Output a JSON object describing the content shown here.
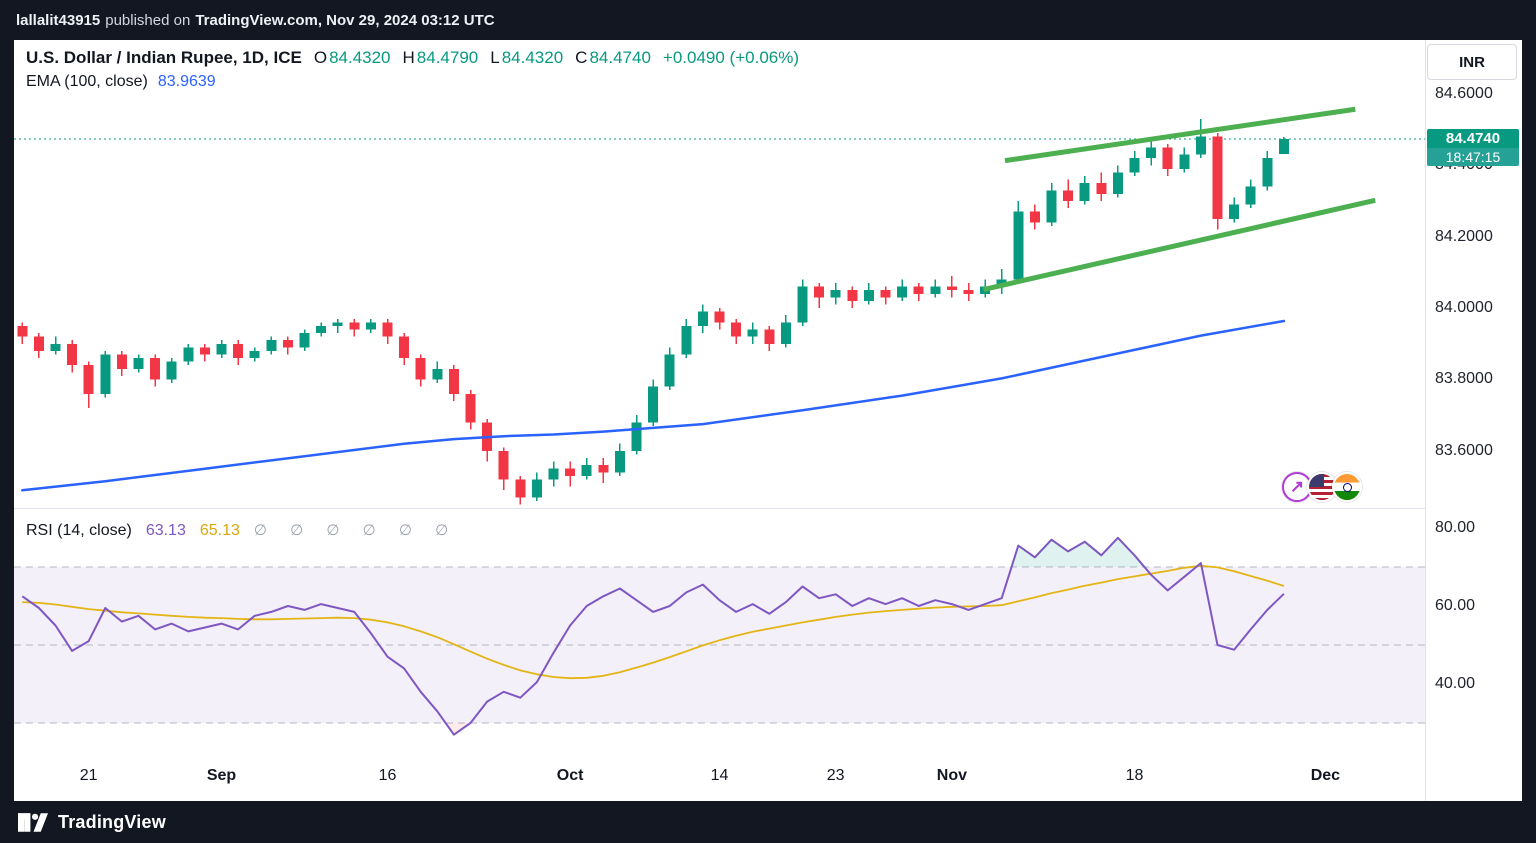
{
  "topbar": {
    "user": "lallalit43915",
    "mid": "published on",
    "rest": "TradingView.com, Nov 29, 2024 03:12 UTC"
  },
  "legend": {
    "symbol": "U.S. Dollar / Indian Rupee, 1D, ICE",
    "o_label": "O",
    "o": "84.4320",
    "h_label": "H",
    "h": "84.4790",
    "l_label": "L",
    "l": "84.4320",
    "c_label": "C",
    "c": "84.4740",
    "change": "+0.0490 (+0.06%)",
    "ema_label": "EMA (100, close)",
    "ema_value": "83.9639"
  },
  "rsi_legend": {
    "label": "RSI (14, close)",
    "value": "63.13",
    "ma_value": "65.13",
    "hidden": "∅ ∅ ∅ ∅ ∅ ∅"
  },
  "axis": {
    "currency": "INR",
    "price_label": "84.4740",
    "countdown": "18:47:15",
    "price_ticks": [
      {
        "v": 84.6,
        "label": "84.6000"
      },
      {
        "v": 84.4,
        "label": "84.4000"
      },
      {
        "v": 84.2,
        "label": "84.2000"
      },
      {
        "v": 84.0,
        "label": "84.0000"
      },
      {
        "v": 83.8,
        "label": "83.8000"
      },
      {
        "v": 83.6,
        "label": "83.6000"
      }
    ],
    "rsi_ticks": [
      {
        "v": 80,
        "label": "80.00"
      },
      {
        "v": 60,
        "label": "60.00"
      },
      {
        "v": 40,
        "label": "40.00"
      }
    ]
  },
  "time_axis": [
    {
      "i": 4,
      "label": "21",
      "bold": false
    },
    {
      "i": 12,
      "label": "Sep",
      "bold": true
    },
    {
      "i": 22,
      "label": "16",
      "bold": false
    },
    {
      "i": 33,
      "label": "Oct",
      "bold": true
    },
    {
      "i": 42,
      "label": "14",
      "bold": false
    },
    {
      "i": 49,
      "label": "23",
      "bold": false
    },
    {
      "i": 56,
      "label": "Nov",
      "bold": true
    },
    {
      "i": 67,
      "label": "18",
      "bold": false
    },
    {
      "i": 78.5,
      "label": "Dec",
      "bold": true
    }
  ],
  "colors": {
    "up": "#089981",
    "down": "#f23645",
    "ema": "#2962ff",
    "trend": "#4caf50",
    "rsi": "#7e57c2",
    "rsi_ma": "#e3b514",
    "band_fill": "rgba(126,87,194,0.09)",
    "band_dash": "#b5b8c1",
    "overbought_fill": "rgba(8,153,129,0.13)",
    "oversold_fill": "rgba(242,54,69,0.10)",
    "price_line": "#089981",
    "label_bg": "#089981",
    "page_bg": "#131722",
    "panel_bg": "#ffffff"
  },
  "chart_data": {
    "type": "candlestick",
    "title": "U.S. Dollar / Indian Rupee, 1D, ICE",
    "interval": "1D",
    "exchange": "ICE",
    "current_price": 84.474,
    "price_pane": {
      "ylim": [
        83.44,
        84.751
      ]
    },
    "rsi_pane": {
      "ylim": [
        21.03,
        85.13
      ],
      "upper_band": 70,
      "mid_band": 50,
      "lower_band": 30
    },
    "visible_slots": 85,
    "candles": [
      [
        83.95,
        83.96,
        83.9,
        83.92
      ],
      [
        83.92,
        83.93,
        83.86,
        83.88
      ],
      [
        83.88,
        83.92,
        83.87,
        83.9
      ],
      [
        83.9,
        83.91,
        83.82,
        83.84
      ],
      [
        83.84,
        83.85,
        83.72,
        83.76
      ],
      [
        83.76,
        83.88,
        83.75,
        83.87
      ],
      [
        83.87,
        83.88,
        83.81,
        83.83
      ],
      [
        83.83,
        83.87,
        83.82,
        83.86
      ],
      [
        83.86,
        83.87,
        83.78,
        83.8
      ],
      [
        83.8,
        83.86,
        83.79,
        83.85
      ],
      [
        83.85,
        83.9,
        83.84,
        83.89
      ],
      [
        83.89,
        83.9,
        83.85,
        83.87
      ],
      [
        83.87,
        83.91,
        83.86,
        83.9
      ],
      [
        83.9,
        83.91,
        83.84,
        83.86
      ],
      [
        83.86,
        83.89,
        83.85,
        83.88
      ],
      [
        83.88,
        83.92,
        83.87,
        83.91
      ],
      [
        83.91,
        83.92,
        83.87,
        83.89
      ],
      [
        83.89,
        83.94,
        83.88,
        83.93
      ],
      [
        83.93,
        83.96,
        83.92,
        83.95
      ],
      [
        83.95,
        83.97,
        83.93,
        83.96
      ],
      [
        83.96,
        83.97,
        83.92,
        83.94
      ],
      [
        83.94,
        83.97,
        83.93,
        83.96
      ],
      [
        83.96,
        83.97,
        83.9,
        83.92
      ],
      [
        83.92,
        83.93,
        83.84,
        83.86
      ],
      [
        83.86,
        83.87,
        83.78,
        83.8
      ],
      [
        83.8,
        83.85,
        83.79,
        83.83
      ],
      [
        83.83,
        83.84,
        83.74,
        83.76
      ],
      [
        83.76,
        83.77,
        83.66,
        83.68
      ],
      [
        83.68,
        83.69,
        83.57,
        83.6
      ],
      [
        83.6,
        83.61,
        83.49,
        83.52
      ],
      [
        83.52,
        83.53,
        83.45,
        83.47
      ],
      [
        83.47,
        83.54,
        83.46,
        83.52
      ],
      [
        83.52,
        83.57,
        83.5,
        83.55
      ],
      [
        83.55,
        83.57,
        83.5,
        83.53
      ],
      [
        83.53,
        83.58,
        83.52,
        83.56
      ],
      [
        83.56,
        83.58,
        83.51,
        83.54
      ],
      [
        83.54,
        83.62,
        83.53,
        83.6
      ],
      [
        83.6,
        83.7,
        83.59,
        83.68
      ],
      [
        83.68,
        83.8,
        83.67,
        83.78
      ],
      [
        83.78,
        83.89,
        83.77,
        83.87
      ],
      [
        83.87,
        83.97,
        83.86,
        83.95
      ],
      [
        83.95,
        84.01,
        83.93,
        83.99
      ],
      [
        83.99,
        84.0,
        83.94,
        83.96
      ],
      [
        83.96,
        83.97,
        83.9,
        83.92
      ],
      [
        83.92,
        83.96,
        83.9,
        83.94
      ],
      [
        83.94,
        83.95,
        83.88,
        83.9
      ],
      [
        83.9,
        83.98,
        83.89,
        83.96
      ],
      [
        83.96,
        84.08,
        83.95,
        84.06
      ],
      [
        84.06,
        84.07,
        84.0,
        84.03
      ],
      [
        84.03,
        84.07,
        84.01,
        84.05
      ],
      [
        84.05,
        84.06,
        84.0,
        84.02
      ],
      [
        84.02,
        84.07,
        84.01,
        84.05
      ],
      [
        84.05,
        84.06,
        84.01,
        84.03
      ],
      [
        84.03,
        84.08,
        84.02,
        84.06
      ],
      [
        84.06,
        84.07,
        84.02,
        84.04
      ],
      [
        84.04,
        84.08,
        84.03,
        84.06
      ],
      [
        84.06,
        84.09,
        84.03,
        84.05
      ],
      [
        84.05,
        84.07,
        84.02,
        84.04
      ],
      [
        84.04,
        84.08,
        84.03,
        84.06
      ],
      [
        84.06,
        84.11,
        84.04,
        84.08
      ],
      [
        84.08,
        84.3,
        84.07,
        84.27
      ],
      [
        84.27,
        84.29,
        84.22,
        84.24
      ],
      [
        84.24,
        84.35,
        84.23,
        84.33
      ],
      [
        84.33,
        84.36,
        84.28,
        84.3
      ],
      [
        84.3,
        84.37,
        84.29,
        84.35
      ],
      [
        84.35,
        84.38,
        84.3,
        84.32
      ],
      [
        84.32,
        84.4,
        84.31,
        84.38
      ],
      [
        84.38,
        84.44,
        84.37,
        84.42
      ],
      [
        84.42,
        84.47,
        84.4,
        84.45
      ],
      [
        84.45,
        84.46,
        84.37,
        84.39
      ],
      [
        84.39,
        84.45,
        84.38,
        84.43
      ],
      [
        84.43,
        84.53,
        84.42,
        84.48
      ],
      [
        84.48,
        84.49,
        84.22,
        84.25
      ],
      [
        84.25,
        84.31,
        84.24,
        84.29
      ],
      [
        84.29,
        84.36,
        84.28,
        84.34
      ],
      [
        84.34,
        84.44,
        84.33,
        84.42
      ],
      [
        84.432,
        84.479,
        84.432,
        84.474
      ]
    ],
    "ema": {
      "name": "EMA (100, close)",
      "last_value": 83.9639,
      "points": [
        {
          "i": 0,
          "v": 83.49
        },
        {
          "i": 5,
          "v": 83.515
        },
        {
          "i": 11,
          "v": 83.55
        },
        {
          "i": 17,
          "v": 83.585
        },
        {
          "i": 23,
          "v": 83.62
        },
        {
          "i": 26,
          "v": 83.633
        },
        {
          "i": 29,
          "v": 83.641
        },
        {
          "i": 32,
          "v": 83.646
        },
        {
          "i": 35,
          "v": 83.654
        },
        {
          "i": 41,
          "v": 83.675
        },
        {
          "i": 47,
          "v": 83.714
        },
        {
          "i": 53,
          "v": 83.755
        },
        {
          "i": 59,
          "v": 83.803
        },
        {
          "i": 65,
          "v": 83.863
        },
        {
          "i": 71,
          "v": 83.923
        },
        {
          "i": 76,
          "v": 83.9639
        }
      ]
    },
    "trendlines": [
      {
        "i1": 59.2,
        "p1": 84.413,
        "i2": 80.3,
        "p2": 84.557
      },
      {
        "i1": 57.9,
        "p1": 84.052,
        "i2": 81.5,
        "p2": 84.302
      }
    ],
    "rsi": {
      "name": "RSI (14, close)",
      "last_value": 63.13,
      "ma_last_value": 65.13,
      "values": [
        62.5,
        59.5,
        55,
        48.5,
        51,
        59.5,
        56,
        57.5,
        54,
        55.5,
        53.5,
        54.5,
        55.5,
        54,
        57.5,
        58.5,
        60,
        59,
        60.5,
        59.5,
        58.5,
        53,
        47,
        44,
        38,
        33,
        27,
        30,
        35.5,
        38,
        36.5,
        40.5,
        48,
        55,
        60,
        62.5,
        64.5,
        61.5,
        58.5,
        60,
        63.5,
        65.5,
        61.5,
        58.5,
        60.5,
        58,
        61,
        65,
        62,
        63,
        60,
        62,
        60.5,
        62,
        60,
        61.5,
        60.5,
        59,
        60.5,
        62,
        75.5,
        72.5,
        77,
        74,
        76.5,
        73,
        77.5,
        73,
        68,
        64,
        67.5,
        71,
        50,
        48.8,
        54,
        59,
        63.13
      ],
      "ma": [
        61,
        60.8,
        60.4,
        59.8,
        59.2,
        58.8,
        58.4,
        58.1,
        57.8,
        57.5,
        57.2,
        57,
        56.9,
        56.7,
        56.6,
        56.6,
        56.7,
        56.8,
        56.9,
        57,
        56.9,
        56.5,
        55.8,
        54.8,
        53.5,
        52,
        50.2,
        48.3,
        46.5,
        44.9,
        43.5,
        42.5,
        41.8,
        41.5,
        41.6,
        42.1,
        43,
        44.2,
        45.5,
        46.9,
        48.4,
        49.9,
        51.2,
        52.4,
        53.4,
        54.2,
        55,
        55.8,
        56.5,
        57.2,
        57.8,
        58.3,
        58.7,
        59,
        59.3,
        59.6,
        59.8,
        59.9,
        60,
        60.2,
        61.2,
        62.2,
        63.3,
        64.2,
        65.2,
        66,
        66.9,
        67.6,
        68.3,
        69,
        69.8,
        70.3,
        69.9,
        68.9,
        67.7,
        66.5,
        65.13
      ]
    }
  },
  "branding": {
    "name": "TradingView"
  }
}
